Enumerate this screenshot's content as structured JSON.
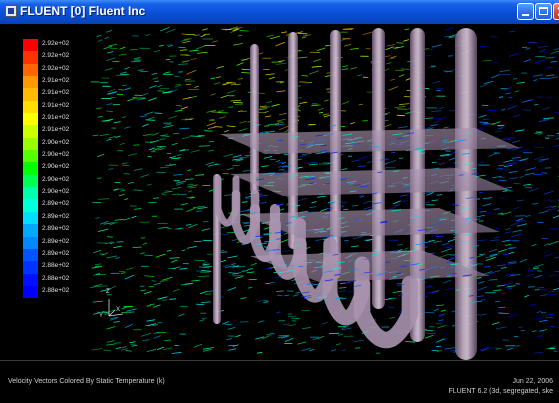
{
  "window": {
    "title": "FLUENT [0] Fluent Inc",
    "icons": {
      "app": "fluent-app-icon",
      "minimize": "minimize-icon",
      "maximize": "maximize-icon",
      "close": "close-icon"
    }
  },
  "legend": {
    "labels": [
      "2.92e+02",
      "2.92e+02",
      "2.92e+02",
      "2.91e+02",
      "2.91e+02",
      "2.91e+02",
      "2.91e+02",
      "2.91e+02",
      "2.90e+02",
      "2.90e+02",
      "2.90e+02",
      "2.90e+02",
      "2.90e+02",
      "2.89e+02",
      "2.89e+02",
      "2.89e+02",
      "2.89e+02",
      "2.89e+02",
      "2.88e+02",
      "2.88e+02",
      "2.88e+02"
    ],
    "colors": [
      "#ff0000",
      "#ff3300",
      "#ff6600",
      "#ff9900",
      "#ffbb00",
      "#ffdd00",
      "#ffff00",
      "#ccff00",
      "#99ff00",
      "#55ff00",
      "#00ff00",
      "#00ff55",
      "#00ffaa",
      "#00ffdd",
      "#00ddff",
      "#00aaff",
      "#0088ff",
      "#0055ff",
      "#0033ff",
      "#0011ff",
      "#0000ff"
    ]
  },
  "triad": {
    "z": "Z",
    "y": "Y",
    "x": "X"
  },
  "caption": {
    "title": "Velocity Vectors Colored By Static Temperature (k)",
    "date": "Jun 22, 2006",
    "solver_info": "FLUENT 6.2 (3d, segregated, ske"
  }
}
